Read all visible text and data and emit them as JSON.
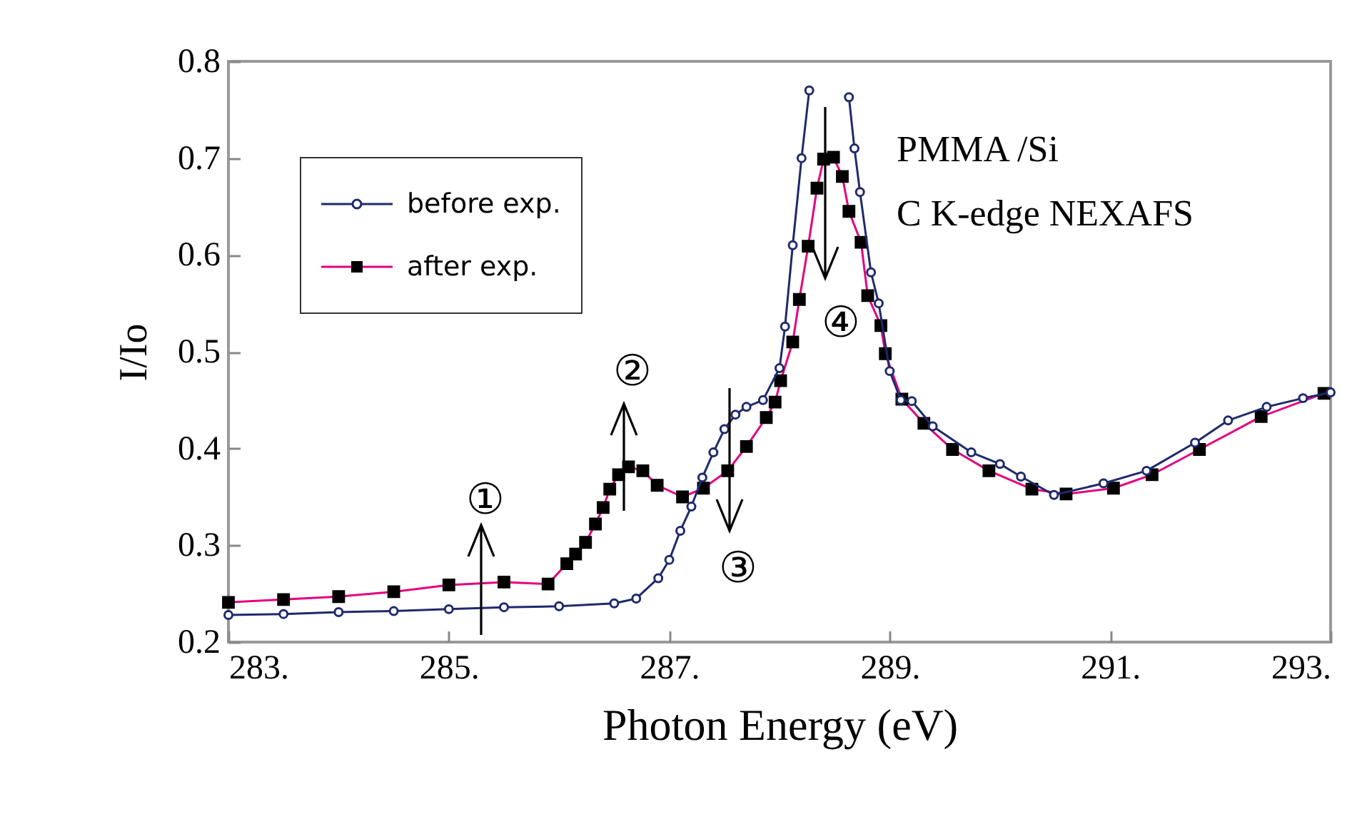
{
  "chart_data": {
    "type": "line",
    "xlabel": "Photon Energy (eV)",
    "ylabel": "I/Io",
    "xlim": [
      283,
      293
    ],
    "ylim": [
      0.2,
      0.8
    ],
    "xticks": [
      {
        "value": 283,
        "label": "283."
      },
      {
        "value": 285,
        "label": "285."
      },
      {
        "value": 287,
        "label": "287."
      },
      {
        "value": 289,
        "label": "289."
      },
      {
        "value": 291,
        "label": "291."
      },
      {
        "value": 293,
        "label": "293."
      }
    ],
    "yticks": [
      0.2,
      0.3,
      0.4,
      0.5,
      0.6,
      0.7,
      0.8
    ],
    "grid": false,
    "legend": "top left",
    "line_style": "solid",
    "series": [
      {
        "name": "before exp.",
        "color": "#1f2a6b",
        "marker": "circle",
        "x": [
          283.0,
          283.5,
          284.0,
          284.5,
          285.0,
          285.5,
          286.0,
          286.5,
          286.7,
          286.9,
          287.0,
          287.1,
          287.2,
          287.3,
          287.4,
          287.5,
          287.6,
          287.7,
          287.85,
          288.0,
          288.05,
          288.12,
          288.2,
          288.27,
          288.45,
          288.63,
          288.68,
          288.73,
          288.83,
          288.9,
          289.0,
          289.1,
          289.2,
          289.39,
          289.74,
          290.0,
          290.19,
          290.49,
          290.94,
          291.33,
          291.77,
          292.07,
          292.42,
          292.75,
          293.0
        ],
        "values": [
          0.228,
          0.229,
          0.231,
          0.232,
          0.234,
          0.236,
          0.237,
          0.24,
          0.245,
          0.266,
          0.285,
          0.315,
          0.34,
          0.37,
          0.396,
          0.42,
          0.435,
          0.443,
          0.45,
          0.483,
          0.526,
          0.61,
          0.7,
          0.77,
          null,
          0.763,
          0.71,
          0.665,
          0.582,
          0.55,
          0.48,
          0.45,
          0.449,
          0.423,
          0.396,
          0.384,
          0.371,
          0.352,
          0.364,
          0.377,
          0.406,
          0.429,
          0.443,
          0.452,
          0.458
        ]
      },
      {
        "name": "after exp.",
        "color": "#e4007f",
        "marker": "square",
        "x": [
          283.0,
          283.5,
          284.0,
          284.5,
          285.0,
          285.5,
          285.9,
          286.07,
          286.15,
          286.24,
          286.33,
          286.4,
          286.46,
          286.54,
          286.63,
          286.76,
          286.89,
          287.12,
          287.31,
          287.53,
          287.7,
          287.88,
          287.96,
          288.01,
          288.12,
          288.18,
          288.26,
          288.34,
          288.4,
          288.49,
          288.57,
          288.63,
          288.74,
          288.8,
          288.92,
          288.96,
          289.11,
          289.31,
          289.57,
          289.9,
          290.29,
          290.6,
          291.03,
          291.38,
          291.81,
          292.37,
          292.94
        ],
        "values": [
          0.241,
          0.244,
          0.247,
          0.252,
          0.259,
          0.262,
          0.26,
          0.281,
          0.291,
          0.303,
          0.322,
          0.339,
          0.358,
          0.373,
          0.381,
          0.377,
          0.362,
          0.35,
          0.359,
          0.377,
          0.402,
          0.432,
          0.448,
          0.47,
          0.51,
          0.554,
          0.609,
          0.669,
          0.699,
          0.701,
          0.681,
          0.645,
          0.613,
          0.558,
          0.527,
          0.498,
          0.451,
          0.426,
          0.399,
          0.377,
          0.358,
          0.353,
          0.359,
          0.373,
          0.399,
          0.433,
          0.457
        ]
      }
    ],
    "annotations": [
      "①",
      "②",
      "③",
      "④",
      "PMMA /Si",
      "C K-edge NEXAFS"
    ]
  }
}
